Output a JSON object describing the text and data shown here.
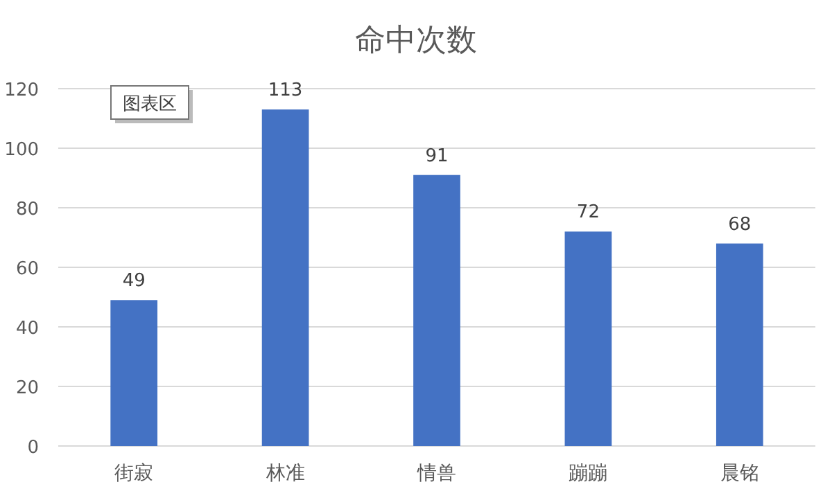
{
  "chart_data": {
    "type": "bar",
    "title": "命中次数",
    "categories": [
      "街寂",
      "林准",
      "情兽",
      "蹦蹦",
      "晨铭"
    ],
    "values": [
      49,
      113,
      91,
      72,
      68
    ],
    "color": "#4472c4",
    "ylim": [
      0,
      120
    ],
    "yticks": [
      0,
      20,
      40,
      60,
      80,
      100,
      120
    ],
    "grid": "y",
    "data_labels": true,
    "annotations": [
      "图表区"
    ]
  }
}
